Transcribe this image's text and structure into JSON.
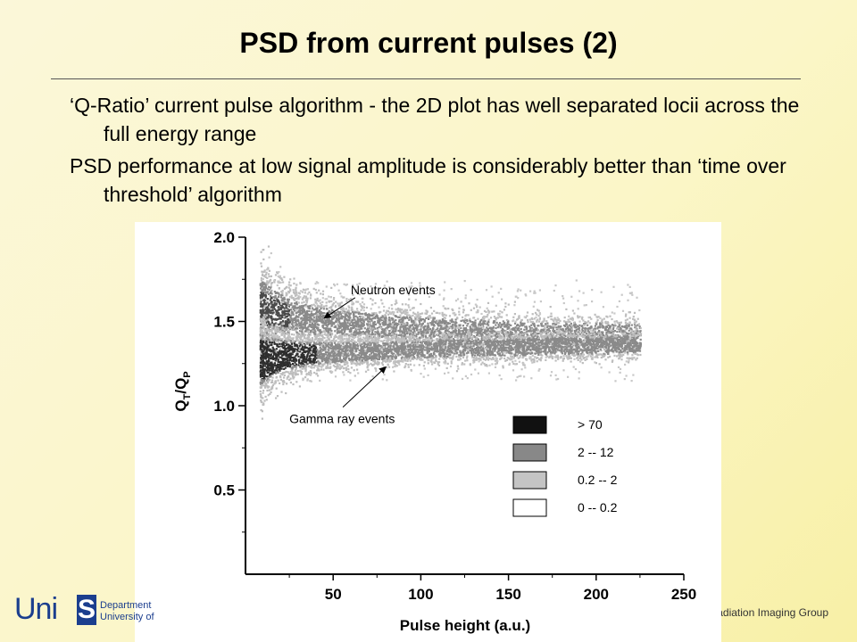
{
  "slide": {
    "title": "PSD from current pulses (2)",
    "bullets": [
      "‘Q-Ratio’ current pulse algorithm - the 2D plot has well separated locii across the full energy range",
      "PSD performance at low signal amplitude is considerably better than ‘time over threshold’ algorithm"
    ]
  },
  "footer": {
    "logo_uni": "Uni",
    "logo_s": "S",
    "logo_line1": "Department",
    "logo_line2": "University of",
    "group_text": "Radiation Imaging Group"
  },
  "chart_data": {
    "type": "heatmap",
    "xlabel": "Pulse height (a.u.)",
    "ylabel": "QT/QP",
    "ylabel_main_1": "Q",
    "ylabel_sub_1": "T",
    "ylabel_sep": "/Q",
    "ylabel_sub_2": "P",
    "xlim": [
      0,
      250
    ],
    "ylim": [
      0.0,
      2.0
    ],
    "x_ticks": [
      50,
      100,
      150,
      200,
      250
    ],
    "y_ticks": [
      0.5,
      1.0,
      1.5,
      2.0
    ],
    "x_tick_labels": [
      "50",
      "100",
      "150",
      "200",
      "250"
    ],
    "y_tick_labels": [
      "0.5",
      "1.0",
      "1.5",
      "2.0"
    ],
    "series": [
      {
        "name": "Neutron events",
        "x": [
          10,
          20,
          30,
          50,
          75,
          100,
          125,
          150,
          175,
          200,
          225
        ],
        "y": [
          1.58,
          1.55,
          1.52,
          1.5,
          1.48,
          1.46,
          1.45,
          1.44,
          1.43,
          1.43,
          1.42
        ]
      },
      {
        "name": "Gamma ray events",
        "x": [
          10,
          20,
          30,
          50,
          75,
          100,
          125,
          150,
          175,
          200,
          225
        ],
        "y": [
          1.28,
          1.3,
          1.31,
          1.32,
          1.33,
          1.34,
          1.35,
          1.35,
          1.36,
          1.36,
          1.37
        ]
      }
    ],
    "x_range_data": [
      8,
      225
    ],
    "annotations": [
      {
        "text": "Neutron events",
        "x": 60,
        "y": 1.62,
        "arrow_to_x": 45,
        "arrow_to_y": 1.52
      },
      {
        "text": "Gamma ray events",
        "x": 25,
        "y": 0.97,
        "arrow_to_x": 80,
        "arrow_to_y": 1.23
      }
    ],
    "legend": {
      "position": "bottom-right",
      "entries": [
        {
          "label": "> 70",
          "color": "#111111"
        },
        {
          "label": "2 -- 12",
          "color": "#888888"
        },
        {
          "label": "0.2 -- 2",
          "color": "#c4c4c4"
        },
        {
          "label": "0 -- 0.2",
          "color": "#ffffff"
        }
      ]
    },
    "grid": false
  }
}
